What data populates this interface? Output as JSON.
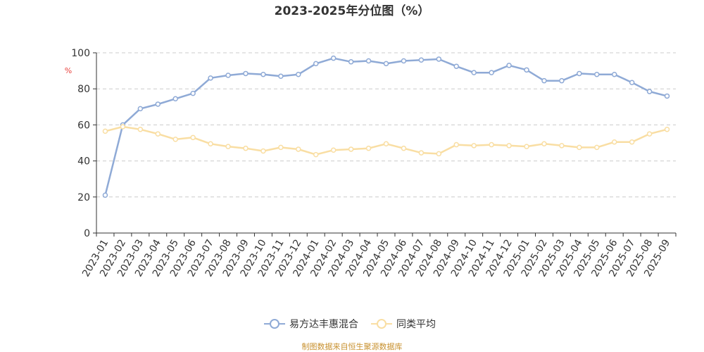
{
  "chart_data": {
    "type": "line",
    "title": "2023-2025年分位图（%）",
    "ylabel": "%",
    "ylim": [
      0,
      100
    ],
    "yticks": [
      0,
      20,
      40,
      60,
      80,
      100
    ],
    "grid": true,
    "legend_position": "bottom",
    "categories": [
      "2023-01",
      "2023-02",
      "2023-03",
      "2023-04",
      "2023-05",
      "2023-06",
      "2023-07",
      "2023-08",
      "2023-09",
      "2023-10",
      "2023-11",
      "2023-12",
      "2024-01",
      "2024-02",
      "2024-03",
      "2024-04",
      "2024-05",
      "2024-06",
      "2024-07",
      "2024-08",
      "2024-09",
      "2024-10",
      "2024-11",
      "2024-12",
      "2025-01",
      "2025-02",
      "2025-03",
      "2025-04",
      "2025-05",
      "2025-06",
      "2025-07",
      "2025-08",
      "2025-09"
    ],
    "series": [
      {
        "name": "易方达丰惠混合",
        "color": "#8faad6",
        "values": [
          21,
          60,
          69,
          71.5,
          74.5,
          77.5,
          86,
          87.5,
          88.5,
          88,
          87,
          88,
          94,
          97,
          95,
          95.5,
          94,
          95.5,
          96,
          96.5,
          92.5,
          89,
          89,
          93,
          90.5,
          84.5,
          84.5,
          88.5,
          88,
          88,
          83.5,
          78.5,
          76
        ]
      },
      {
        "name": "同类平均",
        "color": "#f9dea3",
        "values": [
          56.5,
          59,
          57.5,
          55,
          52,
          53,
          49.5,
          48,
          47,
          45.5,
          47.5,
          46.5,
          43.5,
          46,
          46.5,
          47,
          49.5,
          47,
          44.5,
          44,
          49,
          48.5,
          49,
          48.5,
          48,
          49.5,
          48.5,
          47.5,
          47.5,
          50.5,
          50.5,
          55,
          57.5
        ]
      }
    ]
  },
  "source_note": "制图数据来自恒生聚源数据库"
}
